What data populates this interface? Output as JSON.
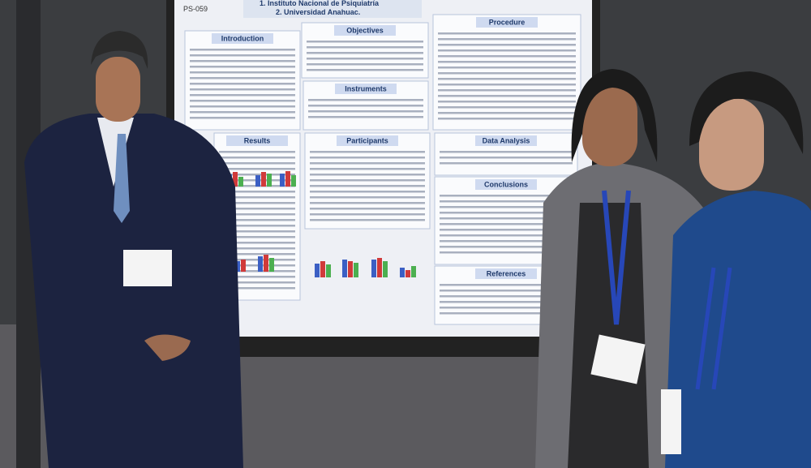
{
  "poster": {
    "code": "PS-059",
    "affiliations": [
      "1. Instituto Nacional de Psiquiatría",
      "2. Universidad Anahuac."
    ],
    "sections": [
      "Introduction",
      "Objectives",
      "Procedure",
      "Instruments",
      "Results",
      "Participants",
      "Data Analysis",
      "Conclusions",
      "References"
    ]
  }
}
